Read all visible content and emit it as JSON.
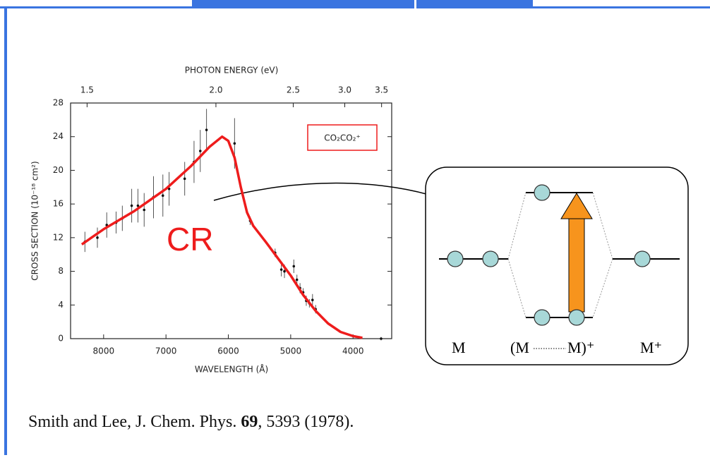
{
  "chart_data": {
    "type": "scatter",
    "x2label": "PHOTON ENERGY (eV)",
    "xlabel": "WAVELENGTH (Å)",
    "ylabel": "CROSS SECTION (10⁻¹⁸ cm²)",
    "legend_label": "CO₂CO₂⁺",
    "annotation": "CR",
    "xlim": [
      8530,
      3380
    ],
    "ylim": [
      0,
      28
    ],
    "xticks": [
      8000,
      7000,
      6000,
      5000,
      4000
    ],
    "yticks": [
      0,
      4,
      8,
      12,
      16,
      20,
      24,
      28
    ],
    "x2ticks": [
      1.5,
      {
        "value": 2,
        "label": "2.0"
      },
      2.5,
      {
        "value": 3,
        "label": "3.0"
      },
      3.5
    ],
    "points": {
      "color": "#111111",
      "x": [
        8300,
        8100,
        7950,
        7800,
        7700,
        7550,
        7450,
        7350,
        7200,
        7050,
        6950,
        6700,
        6550,
        6450,
        6350,
        5900,
        5650,
        5250,
        5150,
        5100,
        4950,
        4900,
        4850,
        4800,
        4750,
        4700,
        4650,
        4600,
        3550
      ],
      "values": [
        11.5,
        12,
        13.5,
        13.8,
        14.3,
        15.8,
        15.8,
        15.3,
        16.8,
        17,
        17.8,
        19,
        21,
        22.3,
        24.8,
        23.2,
        14,
        10.2,
        8.2,
        8,
        8.6,
        7,
        6,
        5.5,
        4.5,
        4.2,
        4.6,
        3.5,
        0
      ],
      "errors": [
        1.2,
        1.2,
        1.5,
        1.3,
        1.5,
        2,
        2,
        2,
        2.5,
        2.5,
        2,
        2,
        2.5,
        2.5,
        2.5,
        3,
        0.5,
        0.5,
        0.8,
        0.8,
        0.8,
        0.6,
        0.6,
        0.5,
        0.6,
        0.5,
        0.7,
        0.5,
        0.2
      ]
    },
    "curve": {
      "color": "#ee1c1c",
      "x": [
        8350,
        8000,
        7500,
        7000,
        6600,
        6300,
        6100,
        6000,
        5900,
        5800,
        5700,
        5600,
        5400,
        5200,
        5000,
        4800,
        4600,
        4400,
        4200,
        4000,
        3850
      ],
      "values": [
        11.2,
        13,
        15.2,
        17.8,
        20.5,
        22.8,
        24,
        23.5,
        21.5,
        18,
        15,
        13.4,
        11.5,
        9.5,
        7.5,
        5.2,
        3.3,
        1.8,
        0.8,
        0.3,
        0.1
      ]
    }
  },
  "diagram": {
    "labels": [
      "M",
      "(M",
      "M)⁺",
      "M⁺"
    ]
  },
  "citation": {
    "authors": "Smith and Lee, J. Chem. Phys. ",
    "volume": "69",
    "rest": ", 5393 (1978)."
  }
}
